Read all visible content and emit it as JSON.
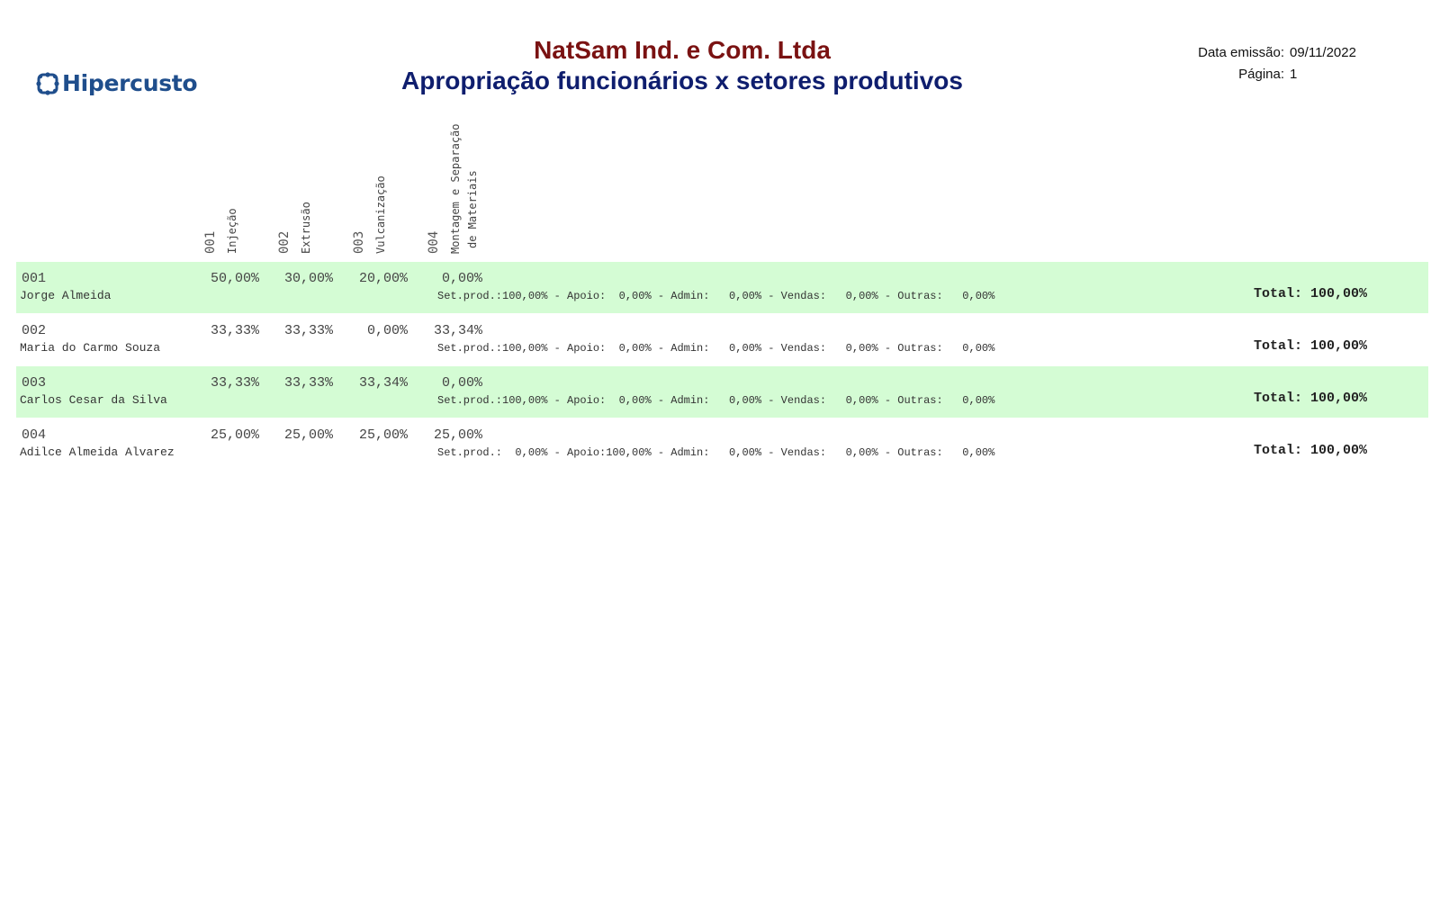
{
  "brand": {
    "logo_text": "Hipercusto"
  },
  "header": {
    "company": "NatSam Ind. e Com. Ltda",
    "title": "Apropriação funcionários x setores produtivos",
    "emission_label": "Data emissão:",
    "emission_date": "09/11/2022",
    "page_label": "Página:",
    "page_number": "1"
  },
  "sectors": [
    {
      "code": "001",
      "name": "Injeção"
    },
    {
      "code": "002",
      "name": "Extrusão"
    },
    {
      "code": "003",
      "name": "Vulcanização"
    },
    {
      "code": "004",
      "name": "Montagem e Separação",
      "name2": "de Materiais"
    }
  ],
  "employees": [
    {
      "code": "001",
      "name": "Jorge Almeida",
      "values": [
        "50,00%",
        "30,00%",
        "20,00%",
        "0,00%"
      ],
      "summary": "Set.prod.:100,00% - Apoio:  0,00% - Admin:   0,00% - Vendas:   0,00% - Outras:   0,00%",
      "total": "Total: 100,00%"
    },
    {
      "code": "002",
      "name": "Maria do Carmo Souza",
      "values": [
        "33,33%",
        "33,33%",
        "0,00%",
        "33,34%"
      ],
      "summary": "Set.prod.:100,00% - Apoio:  0,00% - Admin:   0,00% - Vendas:   0,00% - Outras:   0,00%",
      "total": "Total: 100,00%"
    },
    {
      "code": "003",
      "name": "Carlos Cesar da Silva",
      "values": [
        "33,33%",
        "33,33%",
        "33,34%",
        "0,00%"
      ],
      "summary": "Set.prod.:100,00% - Apoio:  0,00% - Admin:   0,00% - Vendas:   0,00% - Outras:   0,00%",
      "total": "Total: 100,00%"
    },
    {
      "code": "004",
      "name": "Adilce Almeida Alvarez",
      "values": [
        "25,00%",
        "25,00%",
        "25,00%",
        "25,00%"
      ],
      "summary": "Set.prod.:  0,00% - Apoio:100,00% - Admin:   0,00% - Vendas:   0,00% - Outras:   0,00%",
      "total": "Total: 100,00%"
    }
  ],
  "colors": {
    "company": "#7a1212",
    "title": "#0f1e6e",
    "row_shade": "#d4fcd4",
    "logo": "#1f4e8c"
  }
}
